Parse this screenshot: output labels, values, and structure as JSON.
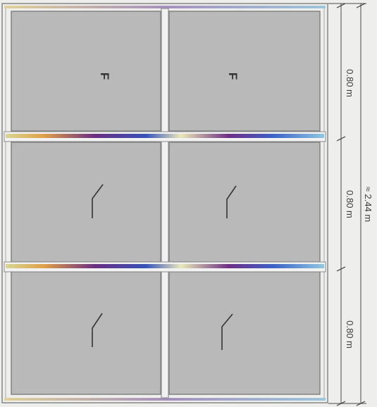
{
  "panels": {
    "top_left": {
      "label": "F"
    },
    "top_right": {
      "label": "F"
    },
    "middle_left": {
      "label": ""
    },
    "middle_right": {
      "label": ""
    },
    "bottom_left": {
      "label": ""
    },
    "bottom_right": {
      "label": ""
    }
  },
  "opener_symbol": "hinge-sash-icon",
  "dimensions": {
    "row_top": "0.80 m",
    "row_middle": "0.80 m",
    "row_bottom": "0.80 m",
    "total_height": "≈ 2.44 m"
  },
  "colors": {
    "pane": "#b9b9b9",
    "frame": "#8c8c8c",
    "transom_gradient": [
      "#c8c870",
      "#d18a3a",
      "#7a3d8c",
      "#3b5cc0",
      "#5ab0d8",
      "#e0e0a0"
    ]
  }
}
